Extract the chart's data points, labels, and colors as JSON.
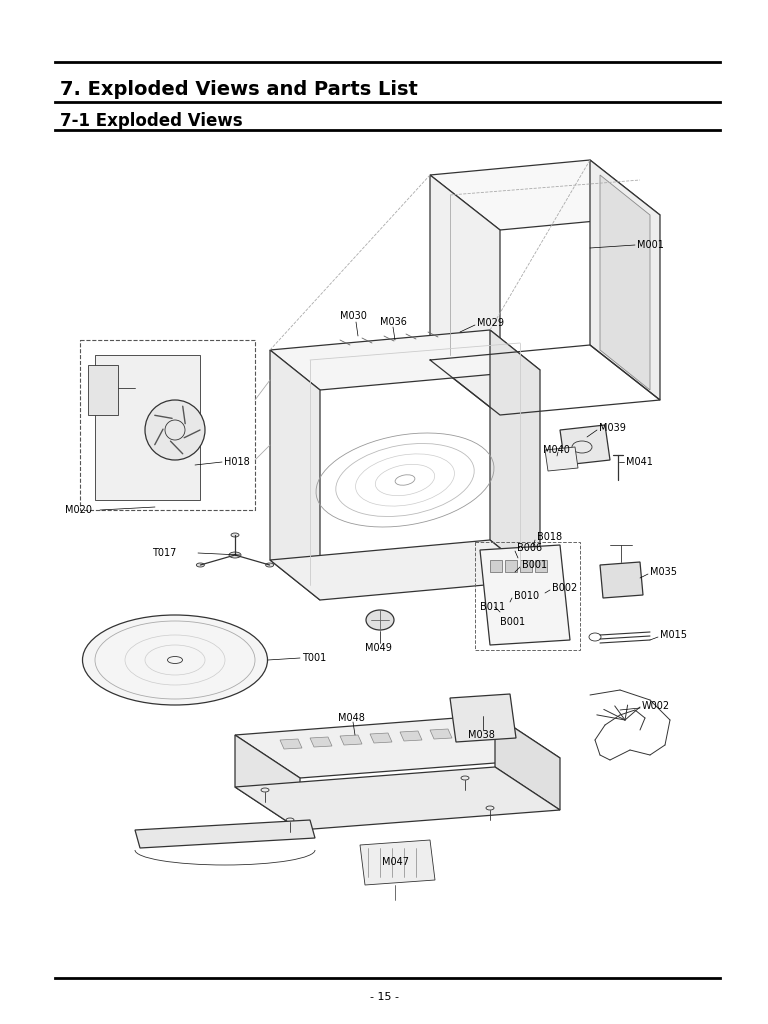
{
  "title1": "7. Exploded Views and Parts List",
  "title2": "7-1 Exploded Views",
  "page_number": "- 15 -",
  "bg_color": "#ffffff",
  "line_color": "#000000",
  "text_color": "#000000",
  "diagram_color": "#333333",
  "title1_fontsize": 14,
  "title2_fontsize": 12,
  "label_fontsize": 7
}
